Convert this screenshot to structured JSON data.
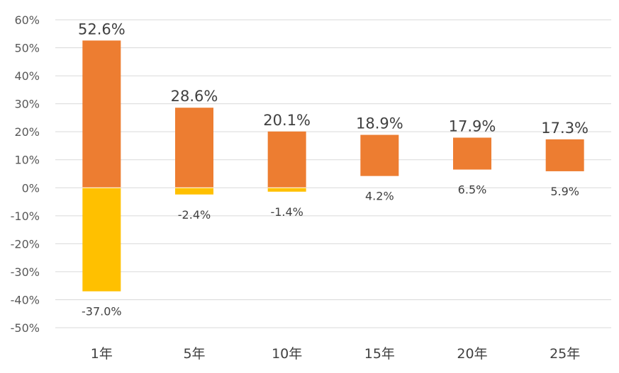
{
  "chart_data": {
    "type": "bar",
    "title": "",
    "xlabel": "",
    "ylabel": "",
    "ylim": [
      -50,
      60
    ],
    "yticks": [
      60,
      50,
      40,
      30,
      20,
      10,
      0,
      -10,
      -20,
      -30,
      -40,
      -50
    ],
    "ytick_labels": [
      "60%",
      "50%",
      "40%",
      "30%",
      "20%",
      "10%",
      "0%",
      "-10%",
      "-20%",
      "-30%",
      "-40%",
      "-50%"
    ],
    "grid": true,
    "legend": "none",
    "categories": [
      "1年",
      "5年",
      "10年",
      "15年",
      "20年",
      "25年"
    ],
    "max_values": [
      52.6,
      28.6,
      20.1,
      18.9,
      17.9,
      17.3
    ],
    "min_values": [
      -37.0,
      -2.4,
      -1.4,
      4.2,
      6.5,
      5.9
    ],
    "max_labels": [
      "52.6%",
      "28.6%",
      "20.1%",
      "18.9%",
      "17.9%",
      "17.3%"
    ],
    "min_labels": [
      "-37.0%",
      "-2.4%",
      "-1.4%",
      "4.2%",
      "6.5%",
      "5.9%"
    ],
    "colors": {
      "positive": "#ED7D31",
      "negative": "#FFC000"
    }
  }
}
